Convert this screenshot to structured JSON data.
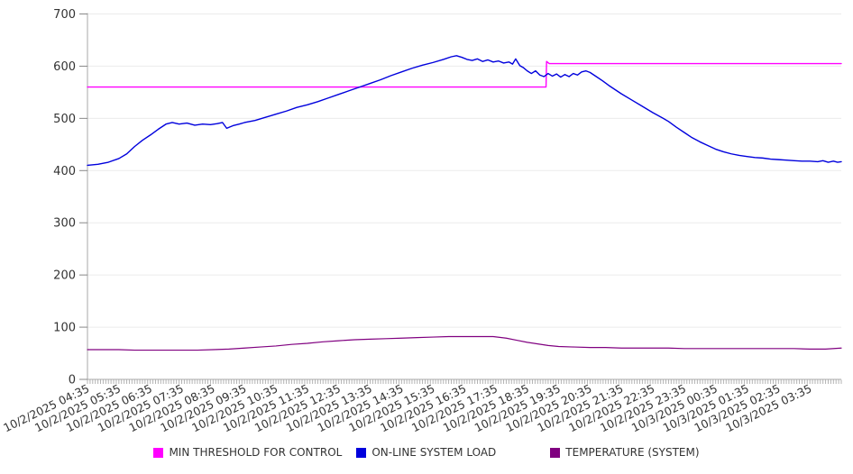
{
  "chart_data": {
    "type": "line",
    "title": "",
    "xlabel": "",
    "ylabel": "",
    "grid": "horizontal",
    "legend_position": "bottom",
    "axis_color": "#aaaaaa",
    "gridline_color": "#ebebeb",
    "tick_label_color": "#333333",
    "y_axis": {
      "min": 0,
      "max": 700,
      "tick_step": 100,
      "ticks": [
        0,
        100,
        200,
        300,
        400,
        500,
        600,
        700
      ]
    },
    "x_axis": {
      "total_minutes": 1440,
      "minutes_per_label": 60,
      "minor_tick_minutes": 5,
      "labels": [
        "10/2/2025 04:35",
        "10/2/2025 05:35",
        "10/2/2025 06:35",
        "10/2/2025 07:35",
        "10/2/2025 08:35",
        "10/2/2025 09:35",
        "10/2/2025 10:35",
        "10/2/2025 11:35",
        "10/2/2025 12:35",
        "10/2/2025 13:35",
        "10/2/2025 14:35",
        "10/2/2025 15:35",
        "10/2/2025 16:35",
        "10/2/2025 17:35",
        "10/2/2025 18:35",
        "10/2/2025 19:35",
        "10/2/2025 20:35",
        "10/2/2025 21:35",
        "10/2/2025 22:35",
        "10/2/2025 23:35",
        "10/3/2025 00:35",
        "10/3/2025 01:35",
        "10/3/2025 02:35",
        "10/3/2025 03:35"
      ]
    },
    "series": [
      {
        "name": "MIN THRESHOLD FOR CONTROL",
        "color": "#ff00ff",
        "points": [
          [
            0,
            560
          ],
          [
            876,
            560
          ],
          [
            877,
            609
          ],
          [
            882,
            605
          ],
          [
            1440,
            605
          ]
        ]
      },
      {
        "name": "ON-LINE SYSTEM LOAD",
        "color": "#0000dd",
        "points": [
          [
            0,
            410
          ],
          [
            20,
            412
          ],
          [
            40,
            416
          ],
          [
            60,
            423
          ],
          [
            75,
            432
          ],
          [
            90,
            446
          ],
          [
            105,
            458
          ],
          [
            120,
            468
          ],
          [
            135,
            479
          ],
          [
            150,
            489
          ],
          [
            162,
            492
          ],
          [
            175,
            489
          ],
          [
            190,
            491
          ],
          [
            205,
            487
          ],
          [
            220,
            489
          ],
          [
            235,
            488
          ],
          [
            248,
            490
          ],
          [
            258,
            492
          ],
          [
            266,
            481
          ],
          [
            278,
            486
          ],
          [
            290,
            489
          ],
          [
            300,
            492
          ],
          [
            320,
            496
          ],
          [
            340,
            502
          ],
          [
            360,
            508
          ],
          [
            380,
            514
          ],
          [
            400,
            521
          ],
          [
            420,
            526
          ],
          [
            440,
            532
          ],
          [
            460,
            539
          ],
          [
            480,
            546
          ],
          [
            500,
            553
          ],
          [
            520,
            560
          ],
          [
            540,
            567
          ],
          [
            560,
            574
          ],
          [
            580,
            582
          ],
          [
            600,
            589
          ],
          [
            620,
            596
          ],
          [
            640,
            602
          ],
          [
            660,
            607
          ],
          [
            680,
            613
          ],
          [
            695,
            618
          ],
          [
            705,
            620
          ],
          [
            715,
            617
          ],
          [
            725,
            613
          ],
          [
            735,
            611
          ],
          [
            745,
            614
          ],
          [
            755,
            609
          ],
          [
            765,
            612
          ],
          [
            775,
            608
          ],
          [
            785,
            610
          ],
          [
            795,
            606
          ],
          [
            805,
            608
          ],
          [
            812,
            604
          ],
          [
            818,
            614
          ],
          [
            826,
            601
          ],
          [
            833,
            597
          ],
          [
            840,
            591
          ],
          [
            848,
            586
          ],
          [
            856,
            591
          ],
          [
            864,
            583
          ],
          [
            872,
            580
          ],
          [
            880,
            586
          ],
          [
            888,
            581
          ],
          [
            896,
            585
          ],
          [
            904,
            579
          ],
          [
            912,
            584
          ],
          [
            920,
            580
          ],
          [
            928,
            586
          ],
          [
            936,
            583
          ],
          [
            944,
            589
          ],
          [
            952,
            591
          ],
          [
            960,
            588
          ],
          [
            972,
            580
          ],
          [
            984,
            572
          ],
          [
            996,
            563
          ],
          [
            1008,
            555
          ],
          [
            1020,
            547
          ],
          [
            1040,
            535
          ],
          [
            1060,
            523
          ],
          [
            1080,
            511
          ],
          [
            1100,
            500
          ],
          [
            1110,
            494
          ],
          [
            1125,
            483
          ],
          [
            1140,
            473
          ],
          [
            1155,
            463
          ],
          [
            1170,
            455
          ],
          [
            1185,
            448
          ],
          [
            1200,
            441
          ],
          [
            1215,
            436
          ],
          [
            1230,
            432
          ],
          [
            1245,
            429
          ],
          [
            1260,
            427
          ],
          [
            1275,
            425
          ],
          [
            1290,
            424
          ],
          [
            1305,
            422
          ],
          [
            1320,
            421
          ],
          [
            1335,
            420
          ],
          [
            1350,
            419
          ],
          [
            1365,
            418
          ],
          [
            1380,
            418
          ],
          [
            1395,
            417
          ],
          [
            1405,
            419
          ],
          [
            1415,
            416
          ],
          [
            1425,
            418
          ],
          [
            1433,
            416
          ],
          [
            1440,
            417
          ]
        ]
      },
      {
        "name": "TEMPERATURE (SYSTEM)",
        "color": "#800080",
        "points": [
          [
            0,
            57
          ],
          [
            30,
            57
          ],
          [
            60,
            57
          ],
          [
            90,
            56
          ],
          [
            120,
            56
          ],
          [
            150,
            56
          ],
          [
            180,
            56
          ],
          [
            210,
            56
          ],
          [
            240,
            57
          ],
          [
            270,
            58
          ],
          [
            300,
            60
          ],
          [
            330,
            62
          ],
          [
            360,
            64
          ],
          [
            390,
            67
          ],
          [
            420,
            69
          ],
          [
            450,
            72
          ],
          [
            480,
            74
          ],
          [
            510,
            76
          ],
          [
            540,
            77
          ],
          [
            570,
            78
          ],
          [
            600,
            79
          ],
          [
            630,
            80
          ],
          [
            660,
            81
          ],
          [
            690,
            82
          ],
          [
            720,
            82
          ],
          [
            750,
            82
          ],
          [
            775,
            82
          ],
          [
            800,
            79
          ],
          [
            820,
            75
          ],
          [
            840,
            71
          ],
          [
            860,
            68
          ],
          [
            880,
            65
          ],
          [
            900,
            63
          ],
          [
            930,
            62
          ],
          [
            960,
            61
          ],
          [
            990,
            61
          ],
          [
            1020,
            60
          ],
          [
            1050,
            60
          ],
          [
            1080,
            60
          ],
          [
            1110,
            60
          ],
          [
            1140,
            59
          ],
          [
            1170,
            59
          ],
          [
            1200,
            59
          ],
          [
            1230,
            59
          ],
          [
            1260,
            59
          ],
          [
            1290,
            59
          ],
          [
            1320,
            59
          ],
          [
            1350,
            59
          ],
          [
            1380,
            58
          ],
          [
            1410,
            58
          ],
          [
            1440,
            60
          ]
        ]
      }
    ]
  }
}
